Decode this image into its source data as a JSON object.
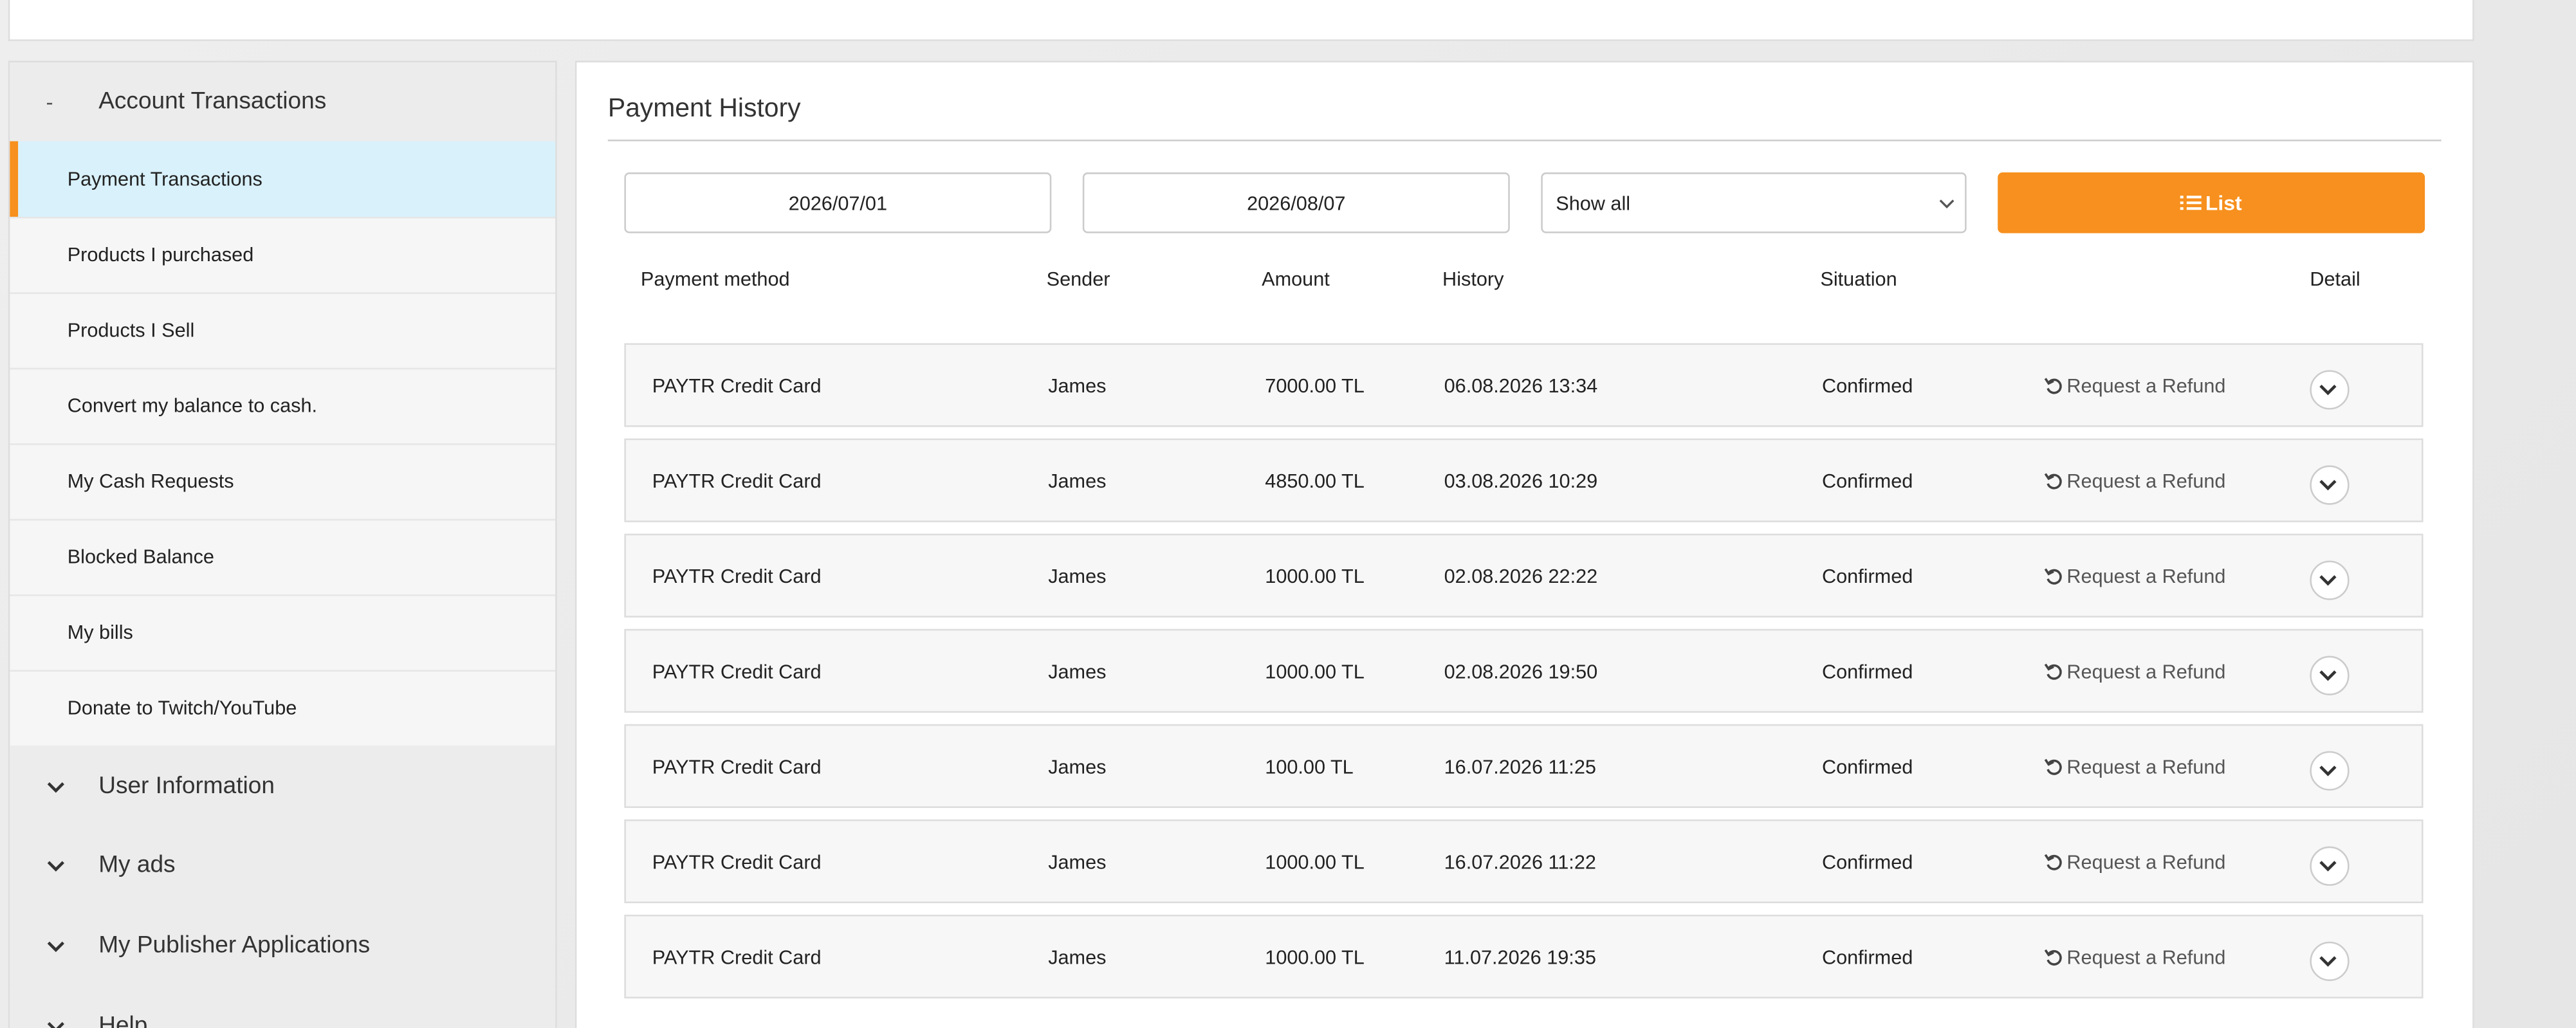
{
  "sidebar": {
    "open_section": {
      "toggle": "-",
      "title": "Account Transactions",
      "items": [
        "Payment Transactions",
        "Products I purchased",
        "Products I Sell",
        "Convert my balance to cash.",
        "My Cash Requests",
        "Blocked Balance",
        "My bills",
        "Donate to Twitch/YouTube"
      ]
    },
    "collapsed_sections": [
      "User Information",
      "My ads",
      "My Publisher Applications",
      "Help"
    ]
  },
  "main": {
    "title": "Payment History",
    "filters": {
      "start_date": "2026/07/01",
      "end_date": "2026/08/07",
      "status": "Show all",
      "button": "List"
    },
    "table": {
      "headers": [
        "Payment method",
        "Sender",
        "Amount",
        "History",
        "Situation",
        "Detail"
      ],
      "rows": [
        [
          "PAYTR Credit Card",
          "James",
          "7000.00 TL",
          "06.08.2026 13:34",
          "Confirmed",
          "Request a Refund"
        ],
        [
          "PAYTR Credit Card",
          "James",
          "4850.00 TL",
          "03.08.2026 10:29",
          "Confirmed",
          "Request a Refund"
        ],
        [
          "PAYTR Credit Card",
          "James",
          "1000.00 TL",
          "02.08.2026 22:22",
          "Confirmed",
          "Request a Refund"
        ],
        [
          "PAYTR Credit Card",
          "James",
          "1000.00 TL",
          "02.08.2026 19:50",
          "Confirmed",
          "Request a Refund"
        ],
        [
          "PAYTR Credit Card",
          "James",
          "100.00 TL",
          "16.07.2026 11:25",
          "Confirmed",
          "Request a Refund"
        ],
        [
          "PAYTR Credit Card",
          "James",
          "1000.00 TL",
          "16.07.2026 11:22",
          "Confirmed",
          "Request a Refund"
        ],
        [
          "PAYTR Credit Card",
          "James",
          "1000.00 TL",
          "11.07.2026 19:35",
          "Confirmed",
          "Request a Refund"
        ]
      ]
    }
  }
}
